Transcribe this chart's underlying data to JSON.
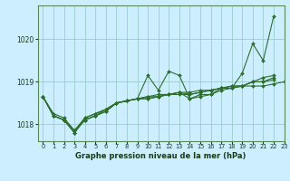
{
  "background_color": "#cceeff",
  "plot_bg_color": "#cceeff",
  "grid_color": "#99cccc",
  "line_color": "#2d6e2d",
  "marker_color": "#2d6e2d",
  "xlabel": "Graphe pression niveau de la mer (hPa)",
  "ylim": [
    1017.6,
    1020.8
  ],
  "xlim": [
    -0.5,
    23
  ],
  "yticks": [
    1018,
    1019,
    1020
  ],
  "xtick_labels": [
    "0",
    "1",
    "2",
    "3",
    "4",
    "5",
    "6",
    "7",
    "8",
    "9",
    "10",
    "11",
    "12",
    "13",
    "14",
    "15",
    "16",
    "17",
    "18",
    "19",
    "20",
    "21",
    "22",
    "23"
  ],
  "series": [
    [
      1018.65,
      1018.2,
      1018.1,
      1017.8,
      1018.1,
      1018.2,
      1018.3,
      1018.5,
      1018.55,
      1018.6,
      1019.15,
      1018.8,
      1019.25,
      1019.15,
      1018.6,
      1018.7,
      1018.7,
      1018.85,
      1018.85,
      1019.2,
      1019.9,
      1019.5,
      1020.55,
      null
    ],
    [
      1018.65,
      1018.2,
      1018.1,
      1017.8,
      1018.15,
      1018.25,
      1018.35,
      1018.5,
      1018.55,
      1018.6,
      1018.6,
      1018.65,
      1018.7,
      1018.75,
      1018.7,
      1018.75,
      1018.8,
      1018.85,
      1018.85,
      1018.9,
      1018.9,
      1018.9,
      1018.95,
      1019.0
    ],
    [
      1018.65,
      1018.2,
      1018.1,
      1017.85,
      1018.1,
      1018.2,
      1018.35,
      1018.5,
      1018.55,
      1018.6,
      1018.6,
      1018.65,
      1018.7,
      1018.75,
      1018.6,
      1018.65,
      1018.7,
      1018.8,
      1018.85,
      1018.9,
      1019.0,
      1019.0,
      1019.1,
      null
    ],
    [
      1018.65,
      1018.2,
      1018.1,
      1017.85,
      1018.1,
      1018.2,
      1018.3,
      1018.5,
      1018.55,
      1018.6,
      1018.65,
      1018.7,
      1018.7,
      1018.7,
      1018.7,
      1018.75,
      1018.8,
      1018.85,
      1018.9,
      1018.9,
      1019.0,
      1019.1,
      1019.15,
      null
    ],
    [
      1018.65,
      1018.25,
      1018.15,
      1017.85,
      1018.15,
      1018.25,
      1018.35,
      1018.5,
      1018.55,
      1018.6,
      1018.65,
      1018.65,
      1018.7,
      1018.75,
      1018.75,
      1018.8,
      1018.8,
      1018.85,
      1018.9,
      1018.9,
      1019.0,
      1019.0,
      1019.05,
      null
    ]
  ]
}
